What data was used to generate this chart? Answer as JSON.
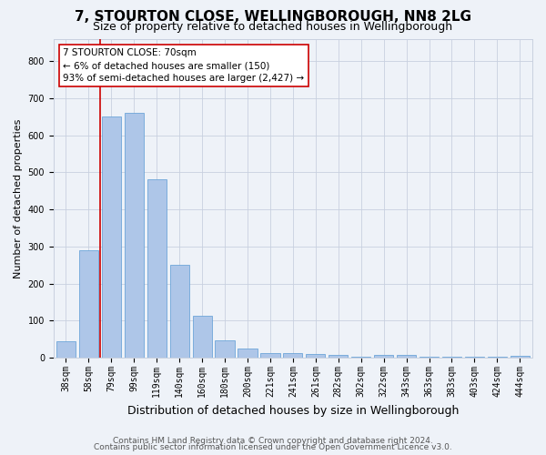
{
  "title1": "7, STOURTON CLOSE, WELLINGBOROUGH, NN8 2LG",
  "title2": "Size of property relative to detached houses in Wellingborough",
  "xlabel": "Distribution of detached houses by size in Wellingborough",
  "ylabel": "Number of detached properties",
  "categories": [
    "38sqm",
    "58sqm",
    "79sqm",
    "99sqm",
    "119sqm",
    "140sqm",
    "160sqm",
    "180sqm",
    "200sqm",
    "221sqm",
    "241sqm",
    "261sqm",
    "282sqm",
    "302sqm",
    "322sqm",
    "343sqm",
    "363sqm",
    "383sqm",
    "403sqm",
    "424sqm",
    "444sqm"
  ],
  "values": [
    45,
    290,
    650,
    660,
    480,
    250,
    113,
    48,
    25,
    14,
    14,
    10,
    7,
    2,
    7,
    7,
    2,
    2,
    2,
    2,
    5
  ],
  "bar_color": "#aec6e8",
  "bar_edge_color": "#5b9bd5",
  "highlight_color": "#cc0000",
  "annotation_line1": "7 STOURTON CLOSE: 70sqm",
  "annotation_line2": "← 6% of detached houses are smaller (150)",
  "annotation_line3": "93% of semi-detached houses are larger (2,427) →",
  "annotation_box_color": "#ffffff",
  "annotation_box_edge": "#cc0000",
  "ylim": [
    0,
    860
  ],
  "yticks": [
    0,
    100,
    200,
    300,
    400,
    500,
    600,
    700,
    800
  ],
  "footer1": "Contains HM Land Registry data © Crown copyright and database right 2024.",
  "footer2": "Contains public sector information licensed under the Open Government Licence v3.0.",
  "bg_color": "#eef2f8",
  "plot_bg_color": "#eef2f8",
  "grid_color": "#c8d0df",
  "title1_fontsize": 11,
  "title2_fontsize": 9,
  "xlabel_fontsize": 9,
  "ylabel_fontsize": 8,
  "tick_fontsize": 7,
  "annot_fontsize": 7.5,
  "footer_fontsize": 6.5
}
